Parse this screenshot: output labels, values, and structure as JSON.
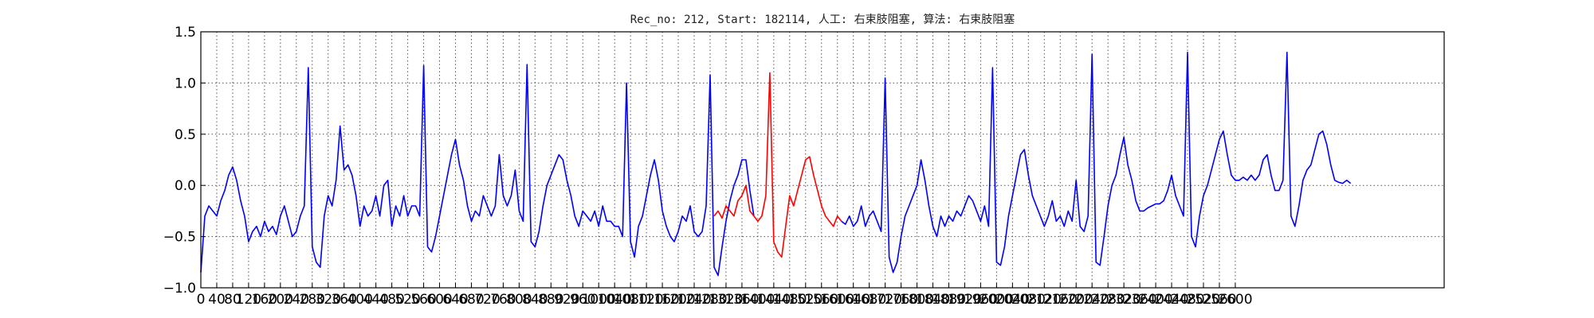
{
  "chart_data": {
    "type": "line",
    "title": "Rec_no: 212, Start: 182114, 人工: 右束肢阻塞, 算法: 右束肢阻塞",
    "xlabel": "",
    "ylabel": "",
    "xlim": [
      0,
      3125
    ],
    "ylim": [
      -1.0,
      1.5
    ],
    "grid": true,
    "ytick_labels": [
      "1.5",
      "1.0",
      "0.5",
      "0.0",
      "−0.5",
      "−1.0"
    ],
    "ytick_values": [
      1.5,
      1.0,
      0.5,
      0.0,
      -0.5,
      -1.0
    ],
    "xtick_step": 40,
    "xtick_max": 2760,
    "xtick_labels": [
      "0",
      "40",
      "80",
      "120",
      "160",
      "200",
      "240",
      "280",
      "320",
      "360",
      "400",
      "440",
      "480",
      "520",
      "560",
      "600",
      "640",
      "680",
      "720",
      "760",
      "800",
      "840",
      "880",
      "920",
      "960",
      "1000",
      "1040",
      "1080",
      "1120",
      "1160",
      "1200",
      "1240",
      "1280",
      "1320",
      "1360",
      "1400",
      "1440",
      "1480",
      "1520",
      "1560",
      "1600",
      "1640",
      "1680",
      "1720",
      "1760",
      "1800",
      "1840",
      "1880",
      "1920",
      "1960",
      "2000",
      "2040",
      "2080",
      "2120",
      "2160",
      "2200",
      "2240",
      "2280",
      "2320",
      "2360",
      "2400",
      "2440",
      "2480",
      "2520",
      "2560",
      "2600"
    ],
    "series": [
      {
        "name": "signal",
        "color": "#0000ff",
        "x_start": 0,
        "x_step": 10,
        "values": [
          -0.85,
          -0.3,
          -0.2,
          -0.25,
          -0.3,
          -0.15,
          -0.05,
          0.1,
          0.18,
          0.05,
          -0.15,
          -0.3,
          -0.55,
          -0.45,
          -0.4,
          -0.5,
          -0.35,
          -0.45,
          -0.4,
          -0.48,
          -0.3,
          -0.2,
          -0.35,
          -0.5,
          -0.45,
          -0.3,
          -0.2,
          1.15,
          -0.6,
          -0.75,
          -0.8,
          -0.3,
          -0.1,
          -0.2,
          0.05,
          0.58,
          0.15,
          0.2,
          0.1,
          -0.1,
          -0.4,
          -0.2,
          -0.3,
          -0.25,
          -0.1,
          -0.3,
          0.0,
          0.05,
          -0.4,
          -0.2,
          -0.3,
          -0.1,
          -0.3,
          -0.2,
          -0.2,
          -0.3,
          1.17,
          -0.6,
          -0.65,
          -0.5,
          -0.3,
          -0.1,
          0.1,
          0.3,
          0.45,
          0.2,
          0.05,
          -0.2,
          -0.35,
          -0.25,
          -0.3,
          -0.1,
          -0.2,
          -0.3,
          -0.2,
          0.3,
          -0.1,
          -0.2,
          -0.1,
          0.15,
          -0.25,
          -0.35,
          1.18,
          -0.55,
          -0.6,
          -0.45,
          -0.2,
          0.0,
          0.1,
          0.2,
          0.3,
          0.25,
          0.05,
          -0.1,
          -0.3,
          -0.4,
          -0.25,
          -0.3,
          -0.35,
          -0.25,
          -0.4,
          -0.2,
          -0.35,
          -0.35,
          -0.4,
          -0.4,
          -0.5,
          1.0,
          -0.55,
          -0.7,
          -0.4,
          -0.3,
          -0.1,
          0.1,
          0.25,
          0.05,
          -0.25,
          -0.4,
          -0.5,
          -0.55,
          -0.45,
          -0.3,
          -0.35,
          -0.2,
          -0.45,
          -0.5,
          -0.45,
          -0.2,
          1.08,
          -0.8,
          -0.88,
          -0.6,
          -0.35,
          -0.15,
          0.0,
          0.1,
          0.25,
          0.25,
          -0.05,
          -0.3
        ],
        "segments_note": "blue from index 0 to 129 continues after red segment"
      },
      {
        "name": "annotated-segment",
        "color": "#ff0000",
        "x_start": 1290,
        "x_step": 10,
        "values": [
          -0.3,
          -0.25,
          -0.32,
          -0.2,
          -0.25,
          -0.3,
          -0.15,
          -0.1,
          0.0,
          -0.25,
          -0.3,
          -0.35,
          -0.3,
          -0.1,
          1.1,
          -0.55,
          -0.65,
          -0.7,
          -0.4,
          -0.1,
          -0.2,
          -0.05,
          0.1,
          0.25,
          0.28,
          0.1,
          -0.05,
          -0.2,
          -0.3,
          -0.35,
          -0.4,
          -0.3,
          -0.35
        ]
      },
      {
        "name": "signal-continued",
        "color": "#0000ff",
        "x_start": 1610,
        "x_step": 10,
        "values": [
          -0.35,
          -0.38,
          -0.3,
          -0.4,
          -0.35,
          -0.2,
          -0.4,
          -0.3,
          -0.25,
          -0.35,
          -0.45,
          1.05,
          -0.7,
          -0.85,
          -0.75,
          -0.5,
          -0.3,
          -0.2,
          -0.1,
          0.0,
          0.25,
          0.05,
          -0.2,
          -0.4,
          -0.5,
          -0.3,
          -0.4,
          -0.3,
          -0.35,
          -0.25,
          -0.3,
          -0.2,
          -0.1,
          -0.15,
          -0.25,
          -0.35,
          -0.2,
          -0.4,
          1.15,
          -0.75,
          -0.78,
          -0.6,
          -0.3,
          -0.1,
          0.1,
          0.3,
          0.35,
          0.1,
          -0.1,
          -0.2,
          -0.3,
          -0.4,
          -0.3,
          -0.15,
          -0.35,
          -0.3,
          -0.4,
          -0.25,
          -0.35,
          0.05,
          -0.4,
          -0.45,
          -0.3,
          1.28,
          -0.75,
          -0.78,
          -0.5,
          -0.2,
          0.0,
          0.1,
          0.3,
          0.47,
          0.2,
          0.05,
          -0.15,
          -0.25,
          -0.25,
          -0.22,
          -0.2,
          -0.18,
          -0.18,
          -0.15,
          -0.05,
          0.1,
          -0.1,
          -0.2,
          -0.3,
          1.3,
          -0.5,
          -0.6,
          -0.3,
          -0.1,
          0.0,
          0.15,
          0.3,
          0.45,
          0.53,
          0.3,
          0.1,
          0.05,
          0.05,
          0.08,
          0.05,
          0.1,
          0.05,
          0.1,
          0.25,
          0.3,
          0.1,
          -0.05,
          -0.05,
          0.05,
          1.3,
          -0.3,
          -0.4,
          -0.2,
          0.05,
          0.15,
          0.2,
          0.35,
          0.5,
          0.53,
          0.4,
          0.2,
          0.05,
          0.03,
          0.02,
          0.05,
          0.02
        ]
      }
    ]
  }
}
